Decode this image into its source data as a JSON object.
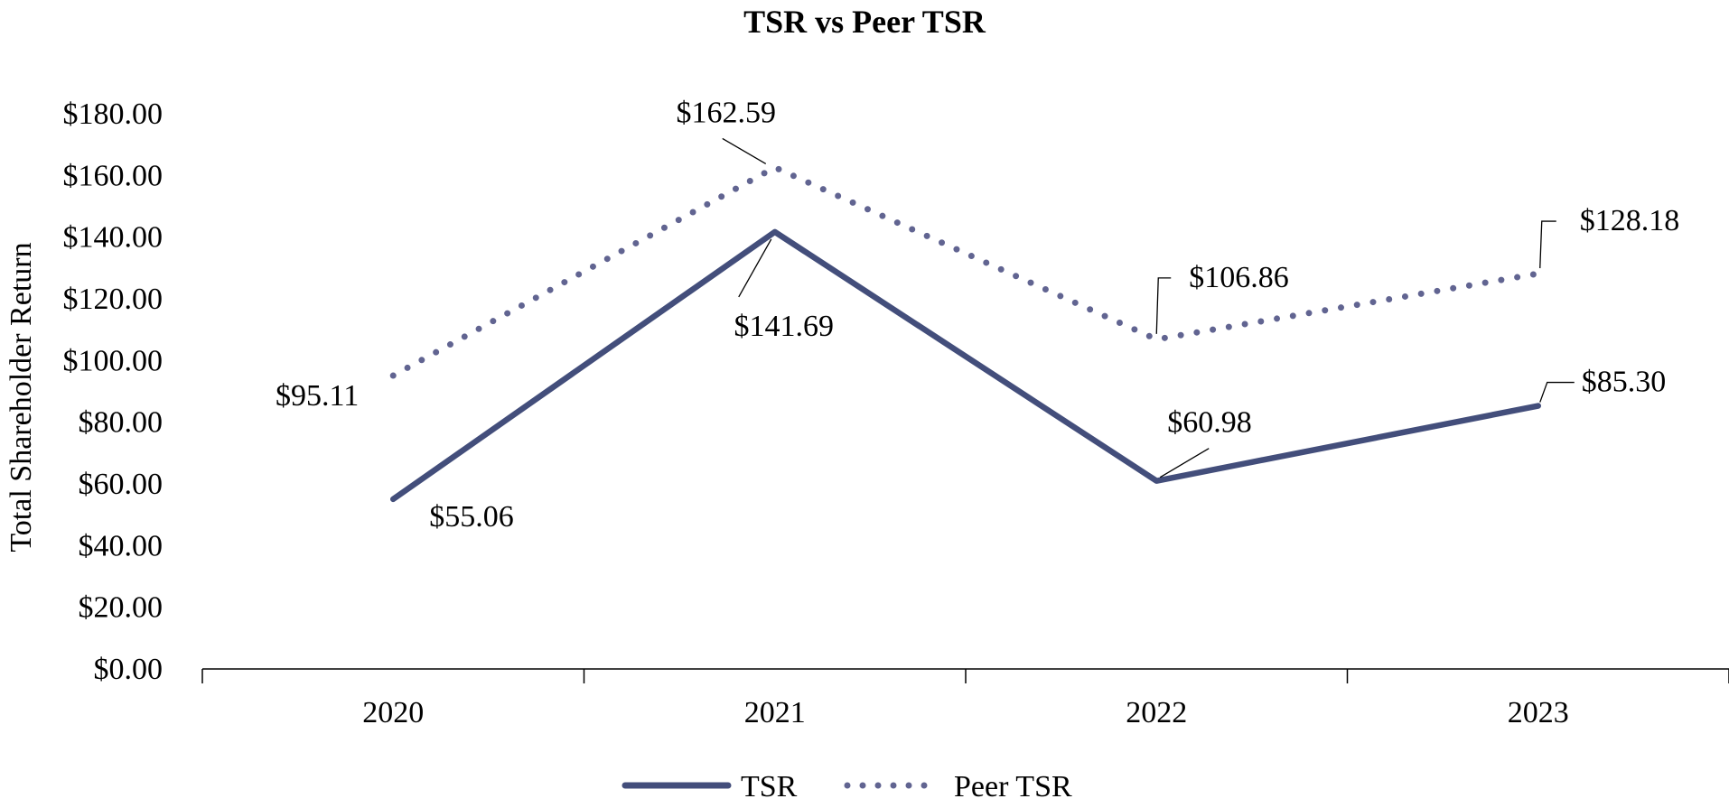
{
  "chart_data": {
    "type": "line",
    "title": "TSR vs Peer TSR",
    "ylabel": "Total Shareholder Return",
    "xlabel": "",
    "categories": [
      "2020",
      "2021",
      "2022",
      "2023"
    ],
    "ylim": [
      0,
      180
    ],
    "yticks": [
      {
        "value": 0,
        "label": "$0.00"
      },
      {
        "value": 20,
        "label": "$20.00"
      },
      {
        "value": 40,
        "label": "$40.00"
      },
      {
        "value": 60,
        "label": "$60.00"
      },
      {
        "value": 80,
        "label": "$80.00"
      },
      {
        "value": 100,
        "label": "$100.00"
      },
      {
        "value": 120,
        "label": "$120.00"
      },
      {
        "value": 140,
        "label": "$140.00"
      },
      {
        "value": 160,
        "label": "$160.00"
      },
      {
        "value": 180,
        "label": "$180.00"
      }
    ],
    "grid": false,
    "legend_position": "bottom",
    "series": [
      {
        "name": "TSR",
        "style": "solid",
        "color": "#434e7b",
        "values": [
          55.06,
          141.69,
          60.98,
          85.3
        ],
        "labels": [
          "$55.06",
          "$141.69",
          "$60.98",
          "$85.30"
        ]
      },
      {
        "name": "Peer TSR",
        "style": "dotted",
        "color": "#616491",
        "values": [
          95.11,
          162.59,
          106.86,
          128.18
        ],
        "labels": [
          "$95.11",
          "$162.59",
          "$106.86",
          "$128.18"
        ]
      }
    ]
  }
}
